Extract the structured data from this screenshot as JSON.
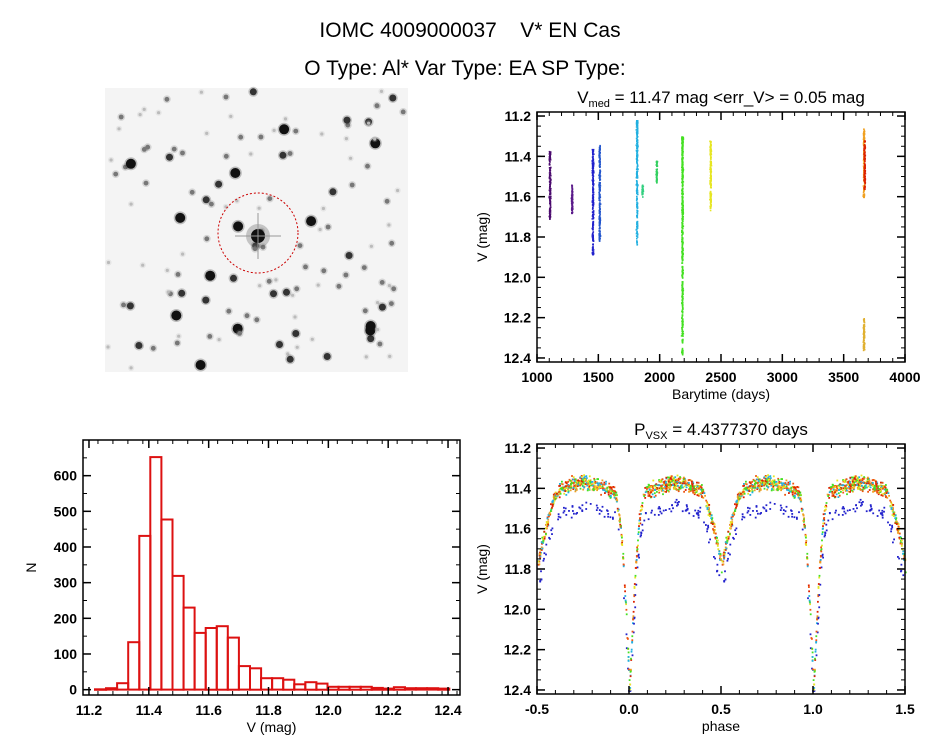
{
  "header": {
    "line1": "IOMC 4009000037    V* EN Cas",
    "line2": "O Type: Al*  Var Type: EA  SP Type:"
  },
  "colors": {
    "axis": "#000000",
    "histogram": "#dd1111",
    "circle": "#cc0000"
  },
  "chart_data": [
    {
      "type": "scatter",
      "panel": "light-curve",
      "title_main": "V",
      "title_sub": "med",
      "title_rest": " = 11.47 mag <err_V> = 0.05 mag",
      "xlabel": "Barytime (days)",
      "ylabel": "V (mag)",
      "xlim": [
        1000,
        4000
      ],
      "ylim": [
        12.42,
        11.18
      ],
      "xticks": [
        "1000",
        "1500",
        "2000",
        "2500",
        "3000",
        "3500",
        "4000"
      ],
      "yticks": [
        "11.2",
        "11.4",
        "11.6",
        "11.8",
        "12.0",
        "12.2",
        "12.4"
      ],
      "series": [
        {
          "t": 1100,
          "vmin": 11.37,
          "vmax": 11.71,
          "color": "#4b0a6e"
        },
        {
          "t": 1280,
          "vmin": 11.54,
          "vmax": 11.68,
          "color": "#5a1a8a"
        },
        {
          "t": 1450,
          "vmin": 11.36,
          "vmax": 11.89,
          "color": "#2222cc"
        },
        {
          "t": 1505,
          "vmin": 11.34,
          "vmax": 11.82,
          "color": "#2255cc"
        },
        {
          "t": 1810,
          "vmin": 11.22,
          "vmax": 11.84,
          "color": "#22b0e0"
        },
        {
          "t": 1855,
          "vmin": 11.54,
          "vmax": 11.6,
          "color": "#33d080"
        },
        {
          "t": 1970,
          "vmin": 11.42,
          "vmax": 11.53,
          "color": "#33d060"
        },
        {
          "t": 2180,
          "vmin": 11.3,
          "vmax": 12.38,
          "color": "#44e022"
        },
        {
          "t": 2410,
          "vmin": 11.32,
          "vmax": 11.67,
          "color": "#e6e622"
        },
        {
          "t": 3660,
          "vmin": 11.26,
          "vmax": 11.6,
          "color": "#f0a020"
        },
        {
          "t": 3665,
          "vmin": 11.32,
          "vmax": 11.56,
          "color": "#dd2200"
        },
        {
          "t": 3660,
          "vmin": 12.2,
          "vmax": 12.36,
          "color": "#e0b030"
        }
      ]
    },
    {
      "type": "bar",
      "panel": "histogram",
      "xlabel": "V (mag)",
      "ylabel": "N",
      "xlim": [
        11.18,
        12.44
      ],
      "ylim": [
        -15,
        700
      ],
      "xticks": [
        "11.2",
        "11.4",
        "11.6",
        "11.8",
        "12.0",
        "12.2",
        "12.4"
      ],
      "yticks": [
        "0",
        "100",
        "200",
        "300",
        "400",
        "500",
        "600"
      ],
      "bin_start": 11.22,
      "bin_width": 0.037,
      "values": [
        1,
        4,
        18,
        133,
        431,
        652,
        477,
        319,
        230,
        159,
        173,
        178,
        146,
        66,
        60,
        32,
        32,
        28,
        15,
        21,
        17,
        8,
        8,
        8,
        8,
        5,
        3,
        7,
        4,
        4,
        4,
        3
      ]
    },
    {
      "type": "scatter",
      "panel": "phased-light-curve",
      "title_main": "P",
      "title_sub": "VSX",
      "title_rest": " = 4.4377370 days",
      "xlabel": "phase",
      "ylabel": "V (mag)",
      "xlim": [
        -0.5,
        1.5
      ],
      "ylim": [
        12.42,
        11.18
      ],
      "xticks": [
        "-0.5",
        "0.0",
        "0.5",
        "1.0",
        "1.5"
      ],
      "yticks": [
        "11.2",
        "11.4",
        "11.6",
        "11.8",
        "12.0",
        "12.2",
        "12.4"
      ],
      "period_days": 4.437737,
      "max_mag": 11.4,
      "primary_min_mag": 12.38,
      "secondary_min_mag": 11.75,
      "series_colors": [
        "#2222cc",
        "#22b0e0",
        "#44e022",
        "#f0a020",
        "#e6e622",
        "#ee5511",
        "#dd2200"
      ]
    }
  ]
}
